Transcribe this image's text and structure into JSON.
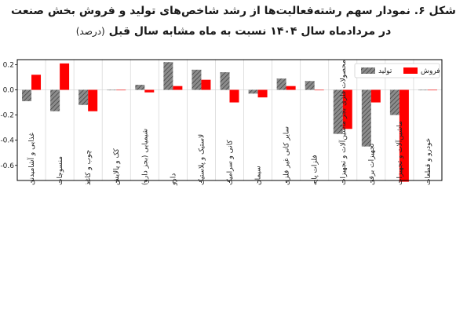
{
  "title_line1": "شکل ۶. نمودار سهم رشته‌فعالیت‌ها از رشد شاخص‌های تولید و فروش بخش صنعت",
  "title_line2": "در مردادماه سال ۱۴۰۴ نسبت به ماه مشابه سال قبل",
  "title_unit": "(درصد)",
  "colors": {
    "production": "#8c8c8c",
    "sales": "#ff0000"
  },
  "chart_data": {
    "type": "bar",
    "ylim": [
      -0.72,
      0.24
    ],
    "yticks": [
      0.2,
      0.0,
      -0.2,
      -0.4,
      -0.6
    ],
    "ytick_labels": [
      "0.2",
      "0.0",
      "-0.2",
      "-0.4",
      "-0.6"
    ],
    "grid": "vertical",
    "legend_position": "top-right",
    "categories": [
      "غذایی و آشامیدنی",
      "منسوجات",
      "چوب و کاغذ",
      "کک و پالایش",
      "شیمیایی (بجز دارو)",
      "دارو",
      "لاستیک و پلاستیک",
      "کانی و سرامیک",
      "سیمان",
      "سایر کانی غیر فلزی",
      "فلزات پایه",
      "محصولات فلزی بجز ماشین‌آلات و تجهیزات",
      "تجهیزات برقی",
      "ماشین‌آلات و تجهیزات",
      "خودرو و قطعات"
    ],
    "series": [
      {
        "name": "تولید",
        "values": [
          -0.09,
          -0.17,
          -0.12,
          0.0,
          0.04,
          0.22,
          0.16,
          0.14,
          -0.03,
          0.09,
          0.07,
          -0.35,
          -0.45,
          -0.2,
          0.0
        ]
      },
      {
        "name": "فروش",
        "values": [
          0.12,
          0.21,
          -0.17,
          0.0,
          -0.02,
          0.03,
          0.08,
          -0.1,
          -0.06,
          0.03,
          0.0,
          -0.31,
          -0.1,
          -0.73,
          0.0
        ]
      }
    ]
  }
}
